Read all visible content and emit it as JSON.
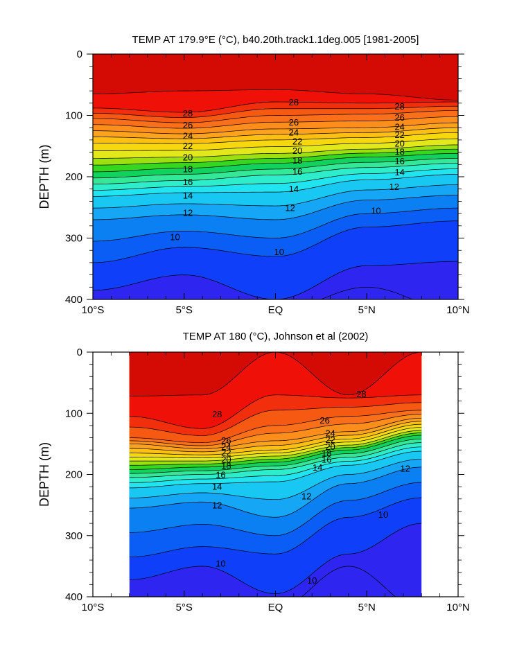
{
  "colors": {
    "t8": "#2e26f0",
    "t9": "#0f3ff8",
    "t10": "#0a5ef5",
    "t11": "#0b80f2",
    "t12": "#15a6f5",
    "t13": "#18c8f2",
    "t14": "#20e4ef",
    "t15": "#2dedca",
    "t16": "#33e896",
    "t17": "#12d25e",
    "t18": "#35d81e",
    "t19": "#9de010",
    "t20": "#e3e81a",
    "t21": "#f7d70e",
    "t22": "#fcbf12",
    "t23": "#fda21c",
    "t24": "#fd8e1c",
    "t25": "#fa6f1a",
    "t26": "#f65a12",
    "t27": "#f22f0c",
    "t28": "#ef1007",
    "t29": "#d40b05",
    "line": "#000000",
    "background": "#ffffff"
  },
  "chart_data": [
    {
      "type": "contour",
      "title": "TEMP AT 179.9°E (°C), b40.20th.track1.1deg.005 [1981-2005]",
      "xlabel": "",
      "ylabel": "DEPTH (m)",
      "xlim": [
        -10,
        10
      ],
      "ylim": [
        400,
        0
      ],
      "x_ticks": [
        -10,
        -5,
        0,
        5,
        10
      ],
      "x_tick_labels": [
        "10°S",
        "5°S",
        "EQ",
        "5°N",
        "10°N"
      ],
      "y_ticks": [
        0,
        100,
        200,
        300,
        400
      ],
      "y_tick_labels": [
        "0",
        "100",
        "200",
        "300",
        "400"
      ],
      "data_extent": [
        -10,
        10
      ],
      "isotherm_depths_x": [
        -10,
        -5,
        0,
        5,
        10
      ],
      "isotherms": {
        "29": [
          65,
          60,
          58,
          65,
          75
        ],
        "28": [
          88,
          95,
          78,
          80,
          78
        ],
        "26": [
          105,
          112,
          100,
          98,
          92
        ],
        "24": [
          125,
          130,
          122,
          120,
          112
        ],
        "22": [
          145,
          146,
          140,
          136,
          128
        ],
        "20": [
          170,
          168,
          162,
          155,
          148
        ],
        "18": [
          192,
          186,
          178,
          168,
          162
        ],
        "16": [
          212,
          206,
          197,
          185,
          178
        ],
        "14": [
          232,
          226,
          225,
          205,
          196
        ],
        "12": [
          270,
          262,
          270,
          238,
          230
        ],
        "10": [
          340,
          315,
          330,
          282,
          272
        ],
        "9": [
          385,
          360,
          400,
          345,
          338
        ],
        "8": [
          420,
          420,
          420,
          380,
          420
        ]
      },
      "contour_labels": [
        {
          "text": "28",
          "x": -4.8,
          "y": 96
        },
        {
          "text": "26",
          "x": -4.8,
          "y": 115
        },
        {
          "text": "24",
          "x": -4.8,
          "y": 133
        },
        {
          "text": "22",
          "x": -4.8,
          "y": 149
        },
        {
          "text": "20",
          "x": -4.8,
          "y": 168
        },
        {
          "text": "18",
          "x": -4.8,
          "y": 187
        },
        {
          "text": "16",
          "x": -4.8,
          "y": 208
        },
        {
          "text": "14",
          "x": -4.8,
          "y": 230
        },
        {
          "text": "12",
          "x": -4.8,
          "y": 258
        },
        {
          "text": "10",
          "x": -5.5,
          "y": 298
        },
        {
          "text": "28",
          "x": 1.0,
          "y": 78
        },
        {
          "text": "26",
          "x": 1.0,
          "y": 111
        },
        {
          "text": "24",
          "x": 1.0,
          "y": 127
        },
        {
          "text": "22",
          "x": 1.2,
          "y": 142
        },
        {
          "text": "20",
          "x": 1.2,
          "y": 157
        },
        {
          "text": "18",
          "x": 1.2,
          "y": 173
        },
        {
          "text": "16",
          "x": 1.2,
          "y": 191
        },
        {
          "text": "14",
          "x": 1.0,
          "y": 219
        },
        {
          "text": "12",
          "x": 0.8,
          "y": 250
        },
        {
          "text": "10",
          "x": 0.2,
          "y": 322
        },
        {
          "text": "28",
          "x": 6.8,
          "y": 85
        },
        {
          "text": "26",
          "x": 6.8,
          "y": 103
        },
        {
          "text": "24",
          "x": 6.8,
          "y": 118
        },
        {
          "text": "22",
          "x": 6.8,
          "y": 131
        },
        {
          "text": "20",
          "x": 6.8,
          "y": 145
        },
        {
          "text": "18",
          "x": 6.8,
          "y": 159
        },
        {
          "text": "16",
          "x": 6.8,
          "y": 174
        },
        {
          "text": "14",
          "x": 6.8,
          "y": 192
        },
        {
          "text": "12",
          "x": 6.5,
          "y": 216
        },
        {
          "text": "10",
          "x": 5.5,
          "y": 255
        }
      ]
    },
    {
      "type": "contour",
      "title": "TEMP AT 180 (°C), Johnson et al (2002)",
      "xlabel": "",
      "ylabel": "DEPTH (m)",
      "xlim": [
        -10,
        10
      ],
      "ylim": [
        400,
        0
      ],
      "x_ticks": [
        -10,
        -5,
        0,
        5,
        10
      ],
      "x_tick_labels": [
        "10°S",
        "5°S",
        "EQ",
        "5°N",
        "10°N"
      ],
      "y_ticks": [
        0,
        100,
        200,
        300,
        400
      ],
      "y_tick_labels": [
        "0",
        "100",
        "200",
        "300",
        "400"
      ],
      "data_extent": [
        -8,
        8
      ],
      "isotherm_depths_x": [
        -8,
        -4,
        0,
        4,
        8
      ],
      "isotherms": {
        "29": [
          72,
          70,
          0,
          70,
          0
        ],
        "28": [
          105,
          125,
          70,
          75,
          70
        ],
        "26": [
          140,
          148,
          120,
          105,
          95
        ],
        "24": [
          150,
          158,
          145,
          130,
          108
        ],
        "22": [
          165,
          168,
          160,
          142,
          118
        ],
        "20": [
          178,
          178,
          170,
          152,
          128
        ],
        "18": [
          192,
          188,
          180,
          160,
          136
        ],
        "16": [
          205,
          200,
          192,
          172,
          148
        ],
        "14": [
          222,
          215,
          212,
          185,
          162
        ],
        "12": [
          255,
          245,
          270,
          215,
          188
        ],
        "10": [
          335,
          318,
          330,
          270,
          238
        ],
        "9": [
          372,
          350,
          395,
          330,
          280
        ],
        "8": [
          420,
          420,
          420,
          350,
          420
        ]
      },
      "contour_labels": [
        {
          "text": "28",
          "x": -3.2,
          "y": 101
        },
        {
          "text": "26",
          "x": -2.7,
          "y": 144
        },
        {
          "text": "24",
          "x": -2.7,
          "y": 154
        },
        {
          "text": "22",
          "x": -2.7,
          "y": 164
        },
        {
          "text": "20",
          "x": -2.7,
          "y": 175
        },
        {
          "text": "18",
          "x": -2.7,
          "y": 185
        },
        {
          "text": "16",
          "x": -3.0,
          "y": 200
        },
        {
          "text": "14",
          "x": -3.2,
          "y": 219
        },
        {
          "text": "12",
          "x": -3.2,
          "y": 250
        },
        {
          "text": "10",
          "x": -3.0,
          "y": 345
        },
        {
          "text": "26",
          "x": 2.7,
          "y": 111
        },
        {
          "text": "24",
          "x": 3.0,
          "y": 132
        },
        {
          "text": "22",
          "x": 3.0,
          "y": 143
        },
        {
          "text": "20",
          "x": 3.0,
          "y": 154
        },
        {
          "text": "18",
          "x": 2.8,
          "y": 165
        },
        {
          "text": "16",
          "x": 2.8,
          "y": 175
        },
        {
          "text": "14",
          "x": 2.3,
          "y": 188
        },
        {
          "text": "12",
          "x": 1.7,
          "y": 235
        },
        {
          "text": "10",
          "x": 2.0,
          "y": 373
        },
        {
          "text": "28",
          "x": 4.7,
          "y": 68
        },
        {
          "text": "12",
          "x": 7.1,
          "y": 190
        },
        {
          "text": "10",
          "x": 5.9,
          "y": 265
        }
      ]
    }
  ]
}
